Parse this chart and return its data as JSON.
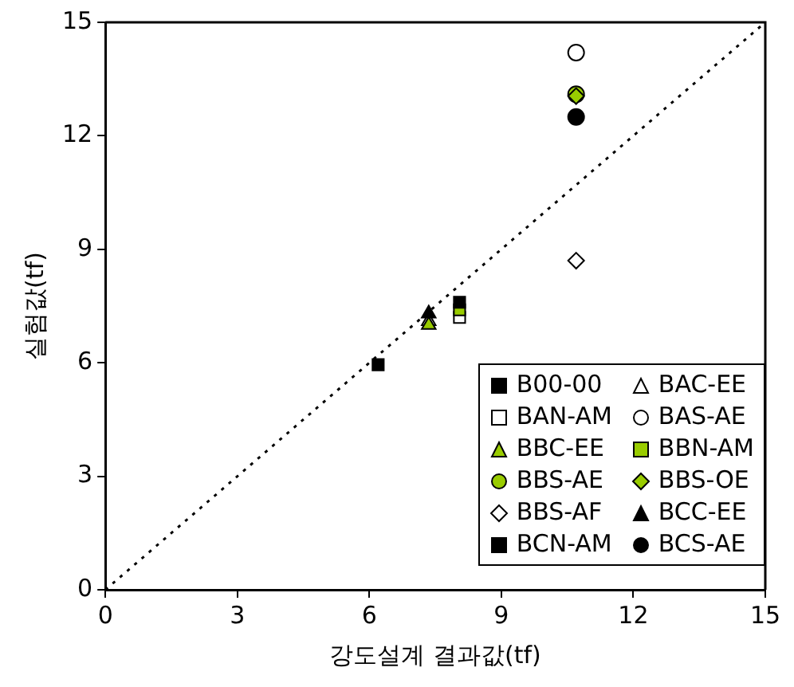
{
  "chart_data": {
    "type": "scatter",
    "xlabel": "강도설계 결과값(tf)",
    "ylabel": "실험값(tf)",
    "xlim": [
      0,
      15
    ],
    "ylim": [
      0,
      15
    ],
    "xticks": [
      0,
      3,
      6,
      9,
      12,
      15
    ],
    "yticks": [
      0,
      3,
      6,
      9,
      12,
      15
    ],
    "grid": false,
    "legend": "bottom right",
    "series": [
      {
        "name": "B00-00",
        "color": "#000000",
        "marker": "square",
        "x": [
          6.2
        ],
        "values": [
          5.95
        ]
      },
      {
        "name": "BAC-EE",
        "color": "#ffffff",
        "marker": "triangle",
        "x": [
          7.35
        ],
        "values": [
          7.1
        ]
      },
      {
        "name": "BAN-AM",
        "color": "#ffffff",
        "marker": "square",
        "x": [
          8.05
        ],
        "values": [
          7.2
        ]
      },
      {
        "name": "BAS-AE",
        "color": "#ffffff",
        "marker": "circle",
        "x": [
          10.7
        ],
        "values": [
          14.2
        ]
      },
      {
        "name": "BBC-EE",
        "color": "#99cc00",
        "marker": "triangle",
        "x": [
          7.35
        ],
        "values": [
          7.0
        ]
      },
      {
        "name": "BBN-AM",
        "color": "#99cc00",
        "marker": "square",
        "x": [
          8.05
        ],
        "values": [
          7.4
        ]
      },
      {
        "name": "BBS-AE",
        "color": "#99cc00",
        "marker": "circle",
        "x": [
          10.7
        ],
        "values": [
          13.1
        ]
      },
      {
        "name": "BBS-OE",
        "color": "#99cc00",
        "marker": "diamond",
        "x": [
          10.7
        ],
        "values": [
          13.05
        ]
      },
      {
        "name": "BBS-AF",
        "color": "#ffffff",
        "marker": "diamond",
        "x": [
          10.7
        ],
        "values": [
          8.7
        ]
      },
      {
        "name": "BCC-EE",
        "color": "#000000",
        "marker": "triangle",
        "x": [
          7.35
        ],
        "values": [
          7.3
        ]
      },
      {
        "name": "BCN-AM",
        "color": "#000000",
        "marker": "square",
        "x": [
          8.05
        ],
        "values": [
          7.6
        ]
      },
      {
        "name": "BCS-AE",
        "color": "#000000",
        "marker": "circle",
        "x": [
          10.7
        ],
        "values": [
          12.5
        ]
      },
      {
        "type": "line",
        "color": "#000000",
        "line_style": "dotted",
        "marker": "none",
        "x": [
          0,
          15
        ],
        "values": [
          0,
          15
        ]
      }
    ]
  }
}
